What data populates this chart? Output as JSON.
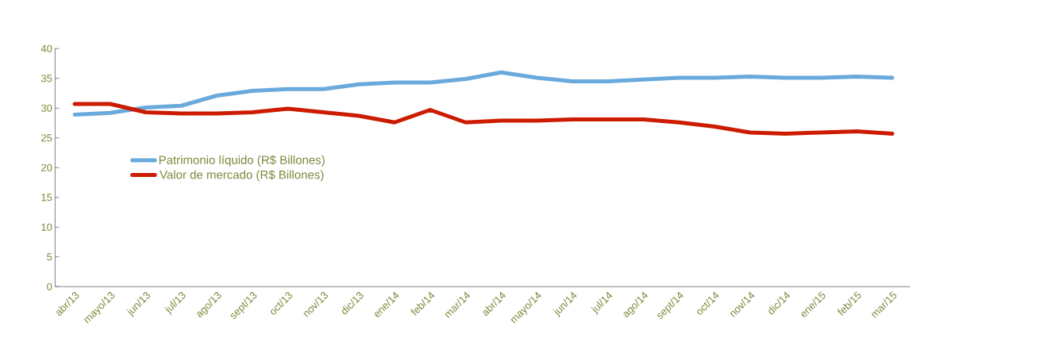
{
  "chart_data": {
    "type": "line",
    "categories": [
      "abr/13",
      "mayo/13",
      "jun/13",
      "jul/13",
      "ago/13",
      "sept/13",
      "oct/13",
      "nov/13",
      "dic/13",
      "ene/14",
      "feb/14",
      "mar/14",
      "abr/14",
      "mayo/14",
      "jun/14",
      "jul/14",
      "ago/14",
      "sept/14",
      "oct/14",
      "nov/14",
      "dic/14",
      "ene/15",
      "feb/15",
      "mar/15"
    ],
    "series": [
      {
        "name": "Patrimonio líquido (R$ Billones)",
        "color": "#6aa9dc",
        "values": [
          28.9,
          29.2,
          30.1,
          30.4,
          32.1,
          32.9,
          33.2,
          33.2,
          34.0,
          34.3,
          34.3,
          34.9,
          36.0,
          35.1,
          34.5,
          34.5,
          34.8,
          35.1,
          35.1,
          35.3,
          35.1,
          35.1,
          35.3,
          35.1
        ]
      },
      {
        "name": "Valor de mercado (R$ Billones)",
        "color": "#cc1b00",
        "values": [
          30.7,
          30.7,
          29.3,
          29.1,
          29.1,
          29.3,
          29.9,
          29.3,
          28.7,
          27.6,
          29.7,
          27.6,
          27.9,
          27.9,
          28.1,
          28.1,
          28.1,
          27.6,
          26.9,
          25.9,
          25.7,
          25.9,
          26.1,
          25.7
        ]
      }
    ],
    "ylim": [
      0,
      40
    ],
    "yticks": [
      0,
      5,
      10,
      15,
      20,
      25,
      30,
      35,
      40
    ],
    "legend": "center left",
    "grid": false,
    "marker": "none",
    "line_style": "solid"
  }
}
